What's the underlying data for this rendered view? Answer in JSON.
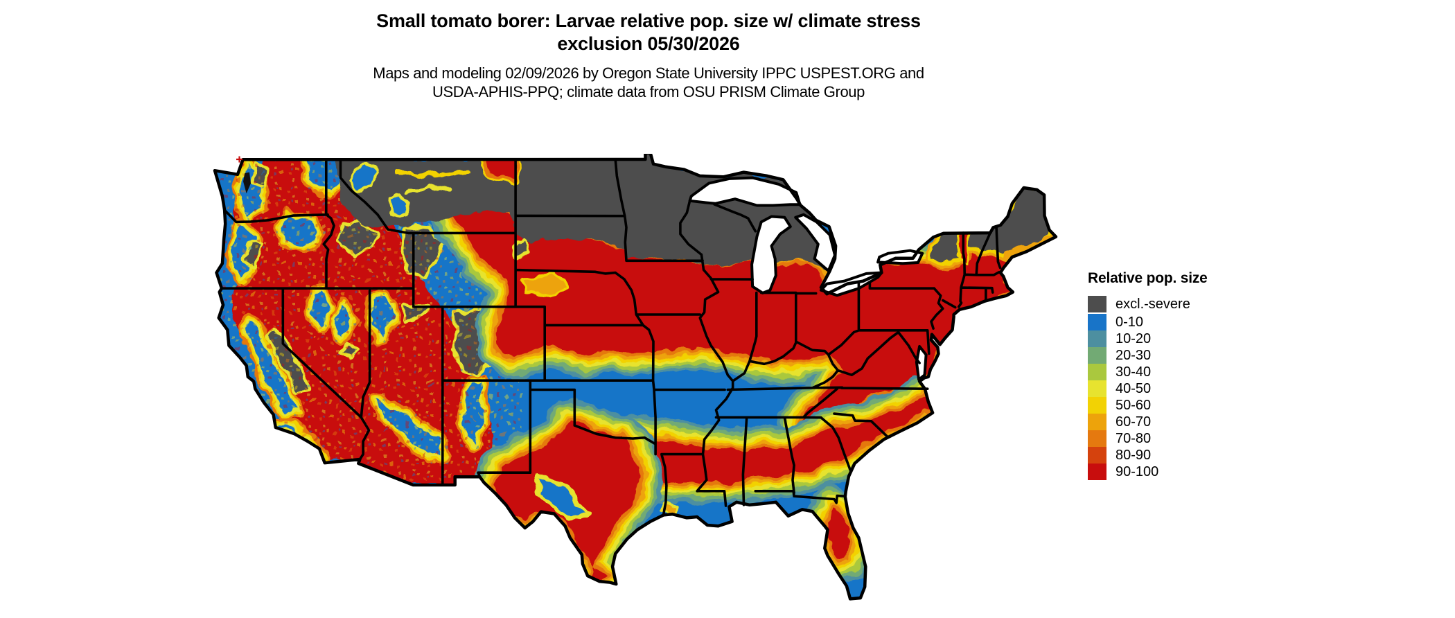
{
  "header": {
    "title_line1": "Small tomato borer: Larvae relative pop. size w/ climate stress",
    "title_line2": "exclusion 05/30/2026",
    "subtitle_line1": "Maps and modeling 02/09/2026 by Oregon State University IPPC USPEST.ORG and",
    "subtitle_line2": "USDA-APHIS-PPQ; climate data from OSU PRISM Climate Group"
  },
  "legend": {
    "title": "Relative pop. size",
    "items": [
      {
        "label": "excl.-severe",
        "color_key": "excl"
      },
      {
        "label": "0-10",
        "color_key": "b0"
      },
      {
        "label": "10-20",
        "color_key": "t10"
      },
      {
        "label": "20-30",
        "color_key": "g20"
      },
      {
        "label": "30-40",
        "color_key": "yg30"
      },
      {
        "label": "40-50",
        "color_key": "y40"
      },
      {
        "label": "50-60",
        "color_key": "gold50"
      },
      {
        "label": "60-70",
        "color_key": "am60"
      },
      {
        "label": "70-80",
        "color_key": "or70"
      },
      {
        "label": "80-90",
        "color_key": "ro80"
      },
      {
        "label": "90-100",
        "color_key": "r90"
      }
    ]
  },
  "palette": {
    "excl": "#4d4d4d",
    "b0": "#1874c8",
    "t10": "#4d8fa0",
    "g20": "#72aa74",
    "yg30": "#aac83e",
    "y40": "#e7e32f",
    "gold50": "#f2d204",
    "am60": "#eda30b",
    "or70": "#e5790f",
    "ro80": "#d5420d",
    "r90": "#c80d0d",
    "border": "#000000",
    "water": "#ffffff"
  }
}
